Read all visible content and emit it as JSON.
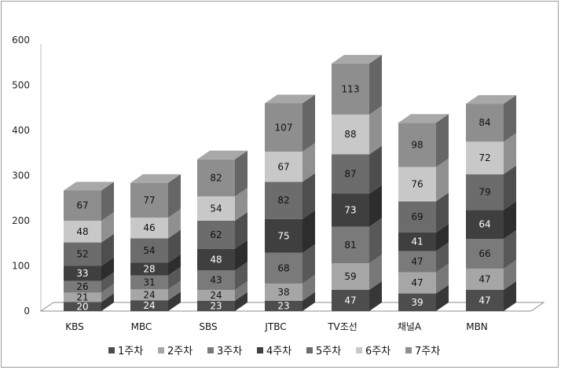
{
  "chart_data": {
    "type": "bar",
    "stacked": true,
    "three_d": true,
    "categories": [
      "KBS",
      "MBC",
      "SBS",
      "JTBC",
      "TV조선",
      "채널A",
      "MBN"
    ],
    "series": [
      {
        "name": "1주차",
        "color": "#4d4d4d",
        "values": [
          20,
          24,
          23,
          23,
          47,
          39,
          47
        ]
      },
      {
        "name": "2주차",
        "color": "#a6a6a6",
        "values": [
          21,
          24,
          24,
          38,
          59,
          47,
          47
        ]
      },
      {
        "name": "3주차",
        "color": "#7a7a7a",
        "values": [
          26,
          31,
          43,
          68,
          81,
          47,
          66
        ]
      },
      {
        "name": "4주차",
        "color": "#3f3f3f",
        "values": [
          33,
          28,
          48,
          75,
          73,
          41,
          64
        ]
      },
      {
        "name": "5주차",
        "color": "#6c6c6c",
        "values": [
          52,
          54,
          62,
          82,
          87,
          69,
          79
        ]
      },
      {
        "name": "6주차",
        "color": "#c8c8c8",
        "values": [
          48,
          46,
          54,
          67,
          88,
          76,
          72
        ]
      },
      {
        "name": "7주차",
        "color": "#8e8e8e",
        "values": [
          67,
          77,
          82,
          107,
          113,
          98,
          84
        ]
      }
    ],
    "ylim": [
      0,
      600
    ],
    "yticks": [
      0,
      100,
      200,
      300,
      400,
      500,
      600
    ],
    "legend_position": "bottom",
    "title": "",
    "xlabel": "",
    "ylabel": ""
  }
}
